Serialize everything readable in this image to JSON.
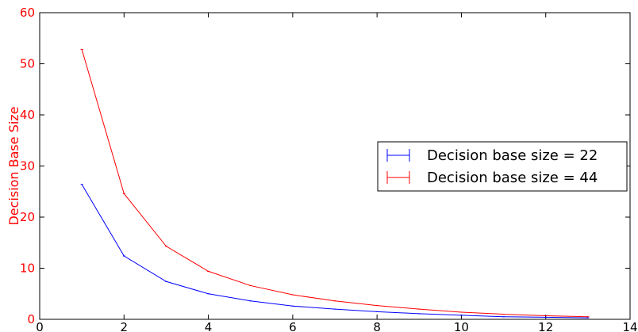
{
  "chart_data": {
    "type": "line",
    "title": "",
    "xlabel": "",
    "ylabel": "Decision Base Size",
    "xlim": [
      0,
      14
    ],
    "ylim": [
      0,
      60
    ],
    "xticks": [
      0,
      2,
      4,
      6,
      8,
      10,
      12,
      14
    ],
    "yticks": [
      0,
      10,
      20,
      30,
      40,
      50,
      60
    ],
    "grid": false,
    "legend_position": "right",
    "axis_color": "#ff0000",
    "series": [
      {
        "name": "Decision base size = 22",
        "color": "#0000ff",
        "x": [
          1,
          2,
          3,
          4,
          5,
          6,
          7,
          8,
          9,
          10,
          11,
          12,
          13
        ],
        "y": [
          26.4,
          12.4,
          7.4,
          5.0,
          3.6,
          2.6,
          2.0,
          1.5,
          1.1,
          0.8,
          0.5,
          0.4,
          0.3
        ]
      },
      {
        "name": "Decision base size = 44",
        "color": "#ff0000",
        "x": [
          1,
          2,
          3,
          4,
          5,
          6,
          7,
          8,
          9,
          10,
          11,
          12,
          13
        ],
        "y": [
          52.8,
          24.6,
          14.3,
          9.4,
          6.6,
          4.8,
          3.6,
          2.7,
          2.0,
          1.4,
          1.0,
          0.7,
          0.5
        ]
      }
    ]
  }
}
